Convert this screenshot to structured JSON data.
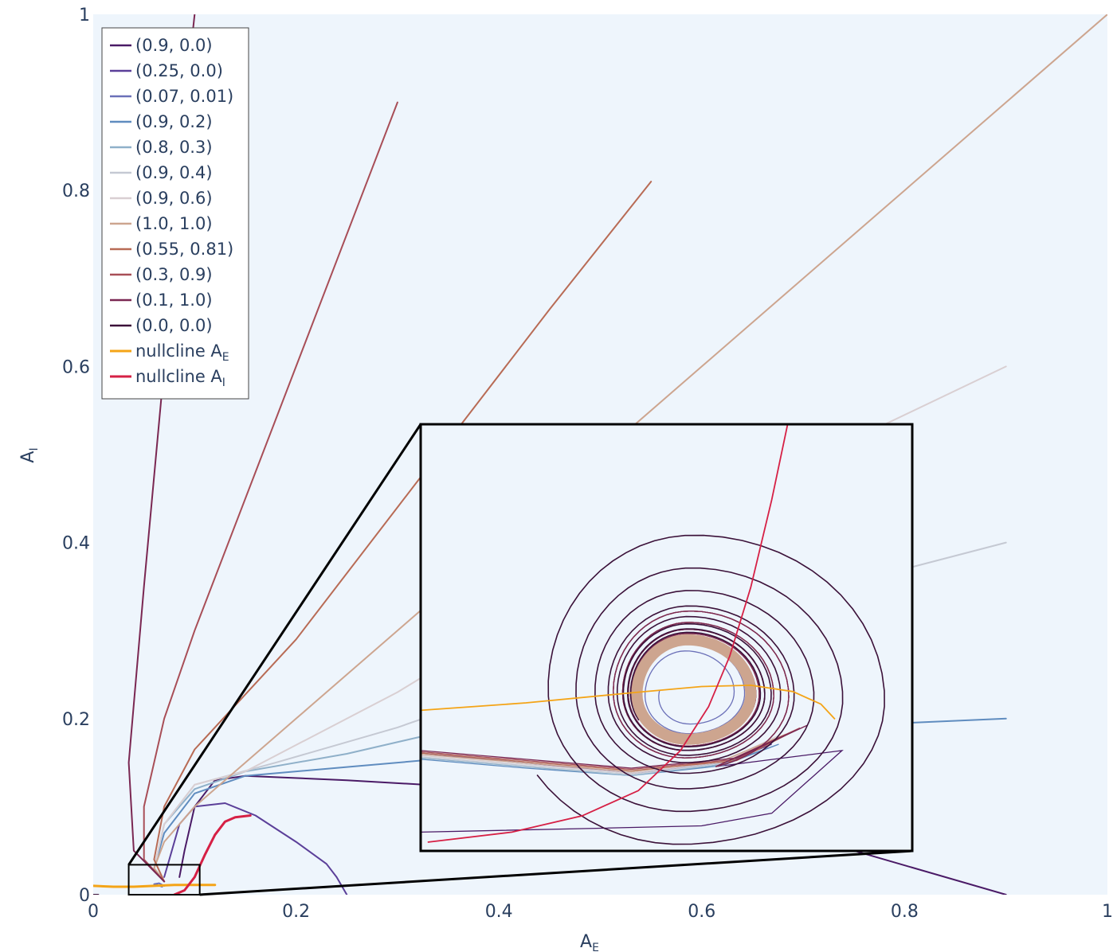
{
  "chart_data": {
    "type": "line",
    "title": "",
    "xlabel": "A",
    "xlabel_sub": "E",
    "ylabel": "A",
    "ylabel_sub": "I",
    "xlim": [
      0,
      1
    ],
    "ylim": [
      0,
      1
    ],
    "x_ticks": [
      {
        "value": 0,
        "label": "0"
      },
      {
        "value": 0.2,
        "label": "0.2"
      },
      {
        "value": 0.4,
        "label": "0.4"
      },
      {
        "value": 0.6,
        "label": "0.6"
      },
      {
        "value": 0.8,
        "label": "0.8"
      },
      {
        "value": 1,
        "label": "1"
      }
    ],
    "y_ticks": [
      {
        "value": 0,
        "label": "0"
      },
      {
        "value": 0.2,
        "label": "0.2"
      },
      {
        "value": 0.4,
        "label": "0.4"
      },
      {
        "value": 0.6,
        "label": "0.6"
      },
      {
        "value": 0.8,
        "label": "0.8"
      },
      {
        "value": 1,
        "label": "1"
      }
    ],
    "grid": false,
    "legend_position": "top-left",
    "series": [
      {
        "name": "(0.9, 0.0)",
        "color": "#4a1a66",
        "points": [
          [
            0.9,
            0.0
          ],
          [
            0.75,
            0.05
          ],
          [
            0.55,
            0.1
          ],
          [
            0.4,
            0.12
          ],
          [
            0.25,
            0.13
          ],
          [
            0.15,
            0.135
          ],
          [
            0.12,
            0.13
          ],
          [
            0.1,
            0.1
          ],
          [
            0.09,
            0.05
          ],
          [
            0.085,
            0.02
          ]
        ]
      },
      {
        "name": "(0.25, 0.0)",
        "color": "#5b3f99",
        "points": [
          [
            0.25,
            0.0
          ],
          [
            0.24,
            0.02
          ],
          [
            0.23,
            0.035
          ],
          [
            0.2,
            0.06
          ],
          [
            0.16,
            0.09
          ],
          [
            0.13,
            0.104
          ],
          [
            0.1,
            0.1
          ],
          [
            0.085,
            0.08
          ],
          [
            0.075,
            0.04
          ],
          [
            0.07,
            0.02
          ]
        ]
      },
      {
        "name": "(0.07, 0.01)",
        "color": "#6b70b8",
        "points": [
          [
            0.07,
            0.01
          ],
          [
            0.065,
            0.013
          ],
          [
            0.06,
            0.012
          ],
          [
            0.068,
            0.009
          ]
        ]
      },
      {
        "name": "(0.9, 0.2)",
        "color": "#5f8cbf",
        "points": [
          [
            0.9,
            0.2
          ],
          [
            0.8,
            0.195
          ],
          [
            0.6,
            0.18
          ],
          [
            0.4,
            0.16
          ],
          [
            0.25,
            0.145
          ],
          [
            0.15,
            0.135
          ],
          [
            0.1,
            0.115
          ],
          [
            0.07,
            0.07
          ],
          [
            0.06,
            0.03
          ],
          [
            0.07,
            0.015
          ]
        ]
      },
      {
        "name": "(0.8, 0.3)",
        "color": "#8fb0c9",
        "points": [
          [
            0.8,
            0.3
          ],
          [
            0.6,
            0.26
          ],
          [
            0.4,
            0.2
          ],
          [
            0.25,
            0.16
          ],
          [
            0.15,
            0.14
          ],
          [
            0.1,
            0.12
          ],
          [
            0.07,
            0.08
          ],
          [
            0.06,
            0.03
          ],
          [
            0.07,
            0.015
          ]
        ]
      },
      {
        "name": "(0.9, 0.4)",
        "color": "#c5c9d3",
        "points": [
          [
            0.9,
            0.4
          ],
          [
            0.7,
            0.34
          ],
          [
            0.5,
            0.27
          ],
          [
            0.3,
            0.19
          ],
          [
            0.18,
            0.15
          ],
          [
            0.1,
            0.125
          ],
          [
            0.07,
            0.08
          ],
          [
            0.06,
            0.03
          ],
          [
            0.07,
            0.015
          ]
        ]
      },
      {
        "name": "(0.9, 0.6)",
        "color": "#d9cfd2",
        "points": [
          [
            0.9,
            0.6
          ],
          [
            0.7,
            0.49
          ],
          [
            0.5,
            0.37
          ],
          [
            0.3,
            0.23
          ],
          [
            0.15,
            0.14
          ],
          [
            0.1,
            0.125
          ],
          [
            0.07,
            0.08
          ],
          [
            0.06,
            0.03
          ],
          [
            0.07,
            0.015
          ]
        ]
      },
      {
        "name": "(1.0, 1.0)",
        "color": "#cda58f",
        "points": [
          [
            1.0,
            1.0
          ],
          [
            0.8,
            0.8
          ],
          [
            0.6,
            0.6
          ],
          [
            0.4,
            0.4
          ],
          [
            0.2,
            0.2
          ],
          [
            0.1,
            0.1
          ],
          [
            0.07,
            0.06
          ],
          [
            0.06,
            0.03
          ],
          [
            0.07,
            0.015
          ]
        ]
      },
      {
        "name": "(0.55, 0.81)",
        "color": "#b86b55",
        "points": [
          [
            0.55,
            0.81
          ],
          [
            0.45,
            0.665
          ],
          [
            0.35,
            0.515
          ],
          [
            0.2,
            0.29
          ],
          [
            0.1,
            0.165
          ],
          [
            0.07,
            0.1
          ],
          [
            0.06,
            0.04
          ],
          [
            0.07,
            0.015
          ]
        ]
      },
      {
        "name": "(0.3, 0.9)",
        "color": "#a84e57",
        "points": [
          [
            0.3,
            0.9
          ],
          [
            0.2,
            0.6
          ],
          [
            0.1,
            0.3
          ],
          [
            0.07,
            0.2
          ],
          [
            0.05,
            0.1
          ],
          [
            0.05,
            0.04
          ],
          [
            0.07,
            0.015
          ]
        ]
      },
      {
        "name": "(0.1, 1.0)",
        "color": "#7a2752",
        "points": [
          [
            0.1,
            1.0
          ],
          [
            0.085,
            0.84
          ],
          [
            0.07,
            0.6
          ],
          [
            0.05,
            0.35
          ],
          [
            0.035,
            0.15
          ],
          [
            0.04,
            0.05
          ],
          [
            0.07,
            0.015
          ]
        ]
      },
      {
        "name": "(0.0, 0.0)",
        "color": "#3b1139",
        "points": [
          [
            0.0,
            0.0
          ],
          [
            0.005,
            0.0
          ]
        ]
      },
      {
        "name": "nullcline A",
        "name_sub": "E",
        "color": "#f4a417",
        "points": [
          [
            0.0,
            0.01
          ],
          [
            0.02,
            0.009
          ],
          [
            0.04,
            0.009
          ],
          [
            0.06,
            0.01
          ],
          [
            0.08,
            0.011
          ],
          [
            0.1,
            0.011
          ],
          [
            0.12,
            0.011
          ]
        ]
      },
      {
        "name": "nullcline A",
        "name_sub": "I",
        "color": "#d62045",
        "points": [
          [
            0.08,
            0.0
          ],
          [
            0.09,
            0.005
          ],
          [
            0.1,
            0.02
          ],
          [
            0.11,
            0.045
          ],
          [
            0.12,
            0.068
          ],
          [
            0.13,
            0.083
          ],
          [
            0.14,
            0.088
          ],
          [
            0.155,
            0.09
          ]
        ]
      }
    ],
    "inset": {
      "zoom_region": {
        "xlim": [
          0.035,
          0.105
        ],
        "ylim": [
          0.0,
          0.034
        ]
      }
    }
  }
}
